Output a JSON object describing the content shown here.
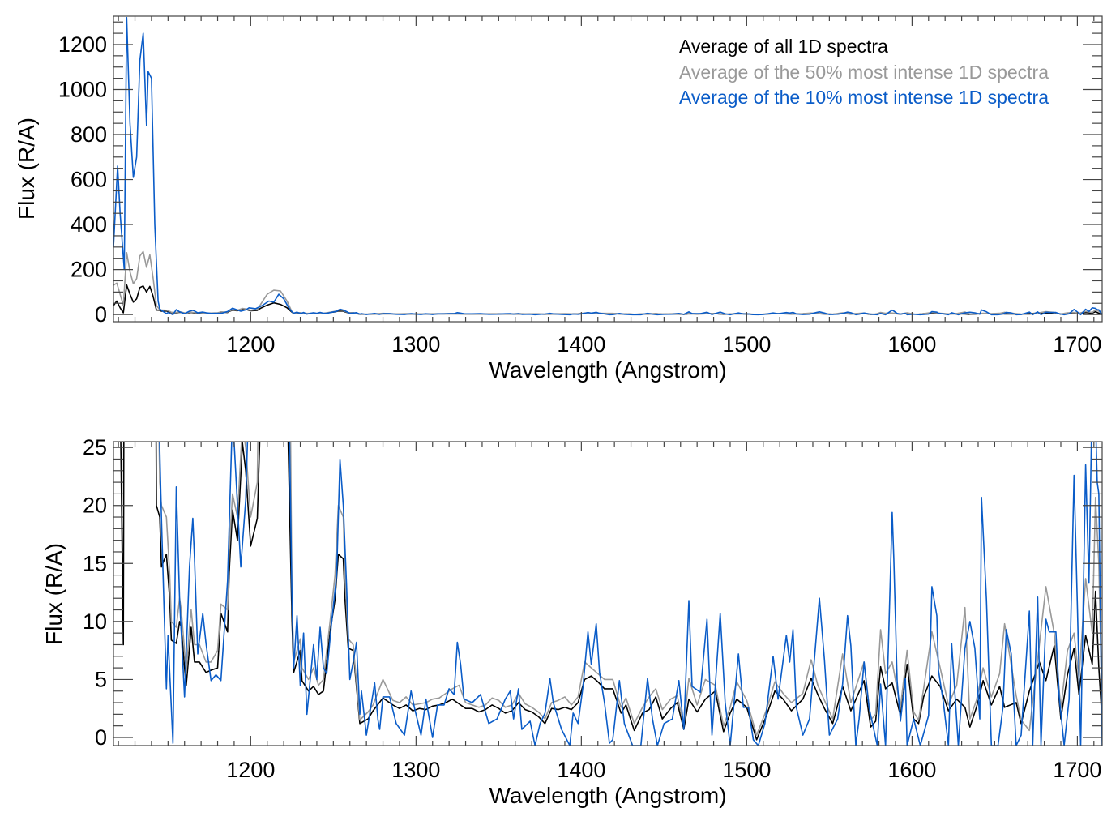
{
  "chart_data": {
    "type": "line",
    "series": [
      {
        "name": "Average of all 1D spectra",
        "color": "#000000",
        "x": [
          1117,
          1119,
          1121,
          1123,
          1125,
          1127,
          1129,
          1131,
          1133,
          1135,
          1137,
          1139,
          1141,
          1143,
          1145,
          1146,
          1149,
          1151,
          1152,
          1155,
          1157,
          1158,
          1160,
          1161,
          1163,
          1164,
          1166,
          1169,
          1173,
          1176,
          1180,
          1182,
          1186,
          1187,
          1189,
          1192,
          1195,
          1197,
          1200,
          1204,
          1206,
          1210,
          1214,
          1218,
          1222,
          1225,
          1226,
          1230,
          1231,
          1235,
          1238,
          1241,
          1244,
          1248,
          1251,
          1253,
          1256,
          1257,
          1259,
          1262,
          1266,
          1271,
          1274,
          1280,
          1286,
          1290,
          1294,
          1298,
          1302,
          1306,
          1310,
          1314,
          1318,
          1322,
          1326,
          1330,
          1334,
          1338,
          1342,
          1346,
          1350,
          1354,
          1358,
          1362,
          1366,
          1370,
          1374,
          1378,
          1382,
          1386,
          1390,
          1394,
          1398,
          1402,
          1406,
          1410,
          1414,
          1419,
          1424,
          1427,
          1432,
          1437,
          1441,
          1445,
          1449,
          1454,
          1458,
          1462,
          1465,
          1470,
          1475,
          1481,
          1486,
          1490,
          1494,
          1500,
          1506,
          1512,
          1517,
          1522,
          1527,
          1534,
          1539,
          1543,
          1547,
          1552,
          1558,
          1563,
          1571,
          1575,
          1578,
          1581,
          1584,
          1588,
          1593,
          1597,
          1601,
          1604,
          1607,
          1612,
          1617,
          1622,
          1627,
          1632,
          1635,
          1639,
          1643,
          1648,
          1653,
          1656,
          1663,
          1666,
          1671,
          1677,
          1681,
          1686,
          1690,
          1694,
          1698,
          1701,
          1705,
          1709,
          1711,
          1713,
          1715
        ],
        "y": [
          40,
          60,
          30,
          8,
          131,
          90,
          55,
          70,
          120,
          127,
          100,
          125,
          80,
          20,
          19,
          14.7,
          15.8,
          11.9,
          8.4,
          8.1,
          10,
          9.5,
          6,
          4.5,
          7.7,
          9.5,
          6.5,
          6.5,
          5.6,
          5.8,
          6,
          10.7,
          9.1,
          14.2,
          19.6,
          17,
          25.4,
          23,
          16.5,
          18.9,
          28,
          42,
          52,
          45,
          30,
          10,
          5.6,
          7.5,
          4.9,
          4,
          4.4,
          3.7,
          4,
          9.1,
          11.9,
          15.8,
          15.4,
          12,
          7.7,
          7.5,
          1.2,
          1.6,
          2.3,
          3.4,
          2.8,
          2.5,
          2.8,
          2.3,
          2.5,
          2.4,
          2.7,
          2.8,
          3.0,
          3.3,
          2.9,
          2.5,
          2.5,
          2.2,
          2.4,
          2.8,
          2.5,
          2.1,
          2.3,
          3.0,
          2.4,
          2.2,
          1.8,
          1.2,
          2.5,
          2.4,
          2.6,
          2.4,
          3.0,
          5.0,
          5.3,
          4.8,
          4.2,
          4.2,
          2.1,
          2.8,
          0.6,
          2.1,
          2.4,
          3.5,
          1.6,
          2.5,
          3.0,
          0.7,
          3.3,
          2.2,
          3.3,
          4.0,
          0.5,
          2.1,
          3.3,
          2.6,
          -0.2,
          1.9,
          4.0,
          3.3,
          2.3,
          3.3,
          5.1,
          3.7,
          2.5,
          1.2,
          4.4,
          2.3,
          4.9,
          0.9,
          1.4,
          6.1,
          4.2,
          4.7,
          1.9,
          6.3,
          1.6,
          1.2,
          3.5,
          5.3,
          4.4,
          2.3,
          3.3,
          2.6,
          0.9,
          2.6,
          4.9,
          2.8,
          4.4,
          2.6,
          3.0,
          1.2,
          4.0,
          6.5,
          4.9,
          7.9,
          1.6,
          5.4,
          7.7,
          3.7,
          8.8,
          6.3,
          12.6,
          6,
          1.4
        ]
      },
      {
        "name": "Average of the 50% most intense 1D spectra",
        "color": "#999999",
        "x": [
          1117,
          1119,
          1121,
          1123,
          1125,
          1127,
          1129,
          1131,
          1133,
          1135,
          1137,
          1139,
          1141,
          1143,
          1145,
          1146,
          1149,
          1151,
          1152,
          1155,
          1157,
          1158,
          1160,
          1161,
          1163,
          1164,
          1166,
          1169,
          1173,
          1176,
          1180,
          1182,
          1186,
          1187,
          1189,
          1192,
          1195,
          1197,
          1200,
          1204,
          1206,
          1210,
          1214,
          1218,
          1222,
          1225,
          1226,
          1230,
          1231,
          1235,
          1238,
          1241,
          1244,
          1248,
          1251,
          1253,
          1256,
          1257,
          1259,
          1262,
          1266,
          1271,
          1274,
          1280,
          1286,
          1290,
          1294,
          1298,
          1302,
          1306,
          1310,
          1314,
          1318,
          1322,
          1326,
          1330,
          1334,
          1338,
          1342,
          1346,
          1350,
          1354,
          1358,
          1362,
          1366,
          1370,
          1374,
          1378,
          1382,
          1386,
          1390,
          1394,
          1398,
          1402,
          1406,
          1410,
          1414,
          1419,
          1424,
          1427,
          1432,
          1437,
          1441,
          1445,
          1449,
          1454,
          1458,
          1462,
          1465,
          1470,
          1475,
          1481,
          1486,
          1490,
          1494,
          1500,
          1506,
          1512,
          1517,
          1522,
          1527,
          1534,
          1539,
          1543,
          1547,
          1552,
          1558,
          1563,
          1571,
          1575,
          1578,
          1581,
          1584,
          1588,
          1593,
          1597,
          1601,
          1604,
          1607,
          1612,
          1617,
          1622,
          1627,
          1632,
          1635,
          1639,
          1643,
          1648,
          1653,
          1656,
          1663,
          1666,
          1671,
          1677,
          1681,
          1686,
          1690,
          1694,
          1698,
          1701,
          1705,
          1709,
          1711,
          1713,
          1715
        ],
        "y": [
          130,
          140,
          90,
          40,
          275,
          190,
          137,
          160,
          260,
          280,
          210,
          265,
          160,
          40,
          22,
          20,
          19,
          14,
          10,
          9.5,
          12,
          11,
          7.5,
          5.5,
          9.5,
          11,
          8,
          8,
          6.5,
          6.5,
          7.5,
          11.5,
          11,
          16,
          21,
          19,
          27,
          25,
          19,
          22,
          45,
          90,
          108,
          105,
          60,
          12,
          6.5,
          8.5,
          6,
          5,
          6,
          4.5,
          5,
          10,
          14,
          20,
          19,
          14,
          8.5,
          8,
          1.5,
          2.2,
          2.8,
          5.0,
          3.2,
          3.0,
          3.5,
          2.8,
          2.9,
          3.0,
          3.3,
          3.4,
          3.8,
          4.2,
          4.5,
          3.0,
          2.8,
          2.6,
          2.8,
          3.4,
          3.2,
          2.6,
          2.8,
          3.8,
          2.9,
          2.6,
          2.2,
          1.6,
          3.0,
          3.2,
          3.5,
          2.8,
          3.5,
          6.5,
          6.0,
          5.5,
          5.0,
          5.0,
          2.6,
          3.4,
          1.2,
          2.6,
          3.5,
          4.2,
          2.4,
          3.3,
          3.6,
          1.0,
          5.1,
          2.8,
          5.0,
          4.5,
          1.0,
          2.6,
          4.8,
          3.2,
          0.2,
          2.4,
          4.8,
          3.8,
          3.0,
          3.8,
          6.7,
          4.5,
          3.2,
          1.6,
          7.2,
          3.0,
          6.5,
          1.5,
          2.0,
          9.3,
          5.5,
          6.5,
          2.6,
          7.5,
          2.2,
          1.5,
          4.2,
          9.1,
          6.0,
          2.8,
          4.5,
          11.2,
          1.6,
          3.2,
          6.0,
          3.5,
          5.5,
          9.8,
          3.6,
          1.5,
          0.6,
          8.0,
          13.0,
          9.0,
          2.5,
          7.5,
          9.0,
          5.0,
          13.7,
          9.0,
          20.7,
          15,
          2
        ]
      },
      {
        "name": "Average of the 10% most intense 1D spectra",
        "color": "#0a5cc8",
        "x": [
          1117,
          1119.5,
          1121,
          1123.5,
          1125,
          1127,
          1129,
          1131,
          1133,
          1135,
          1137,
          1138,
          1140,
          1142,
          1144,
          1145,
          1146,
          1149,
          1150,
          1153,
          1155,
          1157,
          1160,
          1163,
          1165,
          1166,
          1168,
          1171,
          1173,
          1176,
          1179,
          1182,
          1186,
          1189,
          1194,
          1197,
          1199,
          1203,
          1207,
          1211,
          1214,
          1217,
          1220,
          1223,
          1225,
          1226,
          1228,
          1230,
          1232,
          1234,
          1236,
          1238,
          1240,
          1242,
          1244,
          1246,
          1249,
          1252,
          1254,
          1256,
          1258,
          1260,
          1262,
          1264,
          1266,
          1267,
          1270,
          1275,
          1277,
          1278,
          1280,
          1284,
          1288,
          1293,
          1297,
          1299,
          1303,
          1306,
          1310,
          1313,
          1317,
          1320,
          1323,
          1325,
          1327,
          1329,
          1334,
          1339,
          1344,
          1349,
          1354,
          1357,
          1359,
          1362,
          1364,
          1369,
          1372,
          1375,
          1378,
          1381,
          1383,
          1388,
          1393,
          1395,
          1398,
          1401,
          1404,
          1406,
          1409,
          1411,
          1414,
          1417,
          1419,
          1423,
          1426,
          1431,
          1436,
          1440,
          1443,
          1446,
          1450,
          1455,
          1459,
          1462,
          1465,
          1467,
          1472,
          1476,
          1479,
          1484,
          1487,
          1490,
          1495,
          1498,
          1501,
          1504,
          1507,
          1511,
          1516,
          1519,
          1524,
          1526,
          1528,
          1530,
          1534,
          1538,
          1542,
          1544,
          1547,
          1550,
          1555,
          1558,
          1561,
          1563,
          1566,
          1568,
          1571,
          1574,
          1579,
          1581,
          1584,
          1588,
          1589,
          1591,
          1593,
          1596,
          1597,
          1601,
          1605,
          1610,
          1612,
          1615,
          1616,
          1619,
          1622,
          1624,
          1628,
          1632,
          1635,
          1638,
          1641,
          1642,
          1645,
          1648,
          1652,
          1655,
          1657,
          1660,
          1663,
          1666,
          1671,
          1673,
          1676,
          1678,
          1681,
          1683,
          1687,
          1689,
          1692,
          1695,
          1698,
          1700,
          1702,
          1705,
          1707,
          1709,
          1711,
          1712,
          1713,
          1715
        ],
        "y": [
          300,
          660,
          450,
          200,
          1320,
          850,
          610,
          700,
          1130,
          1250,
          840,
          1080,
          1050,
          400,
          60,
          25,
          18.9,
          4.2,
          8.8,
          -0.5,
          21.6,
          11.9,
          3.5,
          14.7,
          18.9,
          15.4,
          7.2,
          10.7,
          8.1,
          4.9,
          5.4,
          4.9,
          13.5,
          28,
          14.7,
          20.5,
          30,
          26,
          40,
          60,
          55,
          90,
          70,
          30,
          12,
          6,
          10.5,
          4.5,
          9,
          2,
          5,
          8,
          5,
          9.5,
          6,
          5.5,
          10,
          14,
          24,
          20,
          13,
          5,
          6.5,
          8.2,
          2,
          4,
          0.2,
          4.7,
          1.5,
          0.7,
          3.5,
          3.5,
          1.2,
          0.2,
          4.0,
          2.6,
          0.2,
          3.3,
          0,
          2.8,
          2.8,
          4.2,
          3.7,
          8.2,
          6.3,
          3.3,
          3.0,
          3.7,
          1.2,
          1.6,
          3.3,
          4.0,
          1.6,
          4.2,
          0.7,
          1.4,
          -0.7,
          1.2,
          2.1,
          5.1,
          3.0,
          0.7,
          -0.7,
          2.1,
          1.2,
          4.4,
          9.1,
          6.3,
          9.8,
          5.6,
          3.0,
          -0.5,
          -0.2,
          4.9,
          1.2,
          -0.7,
          -0.7,
          5.1,
          1.6,
          -0.7,
          1.2,
          1.6,
          4.9,
          0.7,
          11.8,
          4.4,
          3.9,
          10.2,
          0.2,
          10.7,
          3.0,
          -0.7,
          7.2,
          2.6,
          2.6,
          -0.2,
          -0.7,
          1.2,
          7.0,
          3.3,
          8.8,
          6.5,
          9.3,
          2.6,
          0.2,
          1.6,
          8.6,
          12.0,
          6.7,
          0.2,
          1.6,
          4.6,
          10.5,
          7.9,
          -0.7,
          1.6,
          6.5,
          2.6,
          -0.7,
          4.6,
          -0.7,
          19.4,
          15.4,
          4.9,
          1.4,
          5.1,
          -0.7,
          1.6,
          -0.7,
          1.9,
          13.0,
          10.5,
          5.8,
          3.0,
          -0.7,
          8.1,
          -0.7,
          7.7,
          10.0,
          7.7,
          1.6,
          20.7,
          11.9,
          -0.7,
          -0.7,
          2.6,
          9.3,
          7.2,
          -0.7,
          0.2,
          10.9,
          -0.7,
          12.1,
          -0.7,
          10.2,
          9.1,
          9.1,
          3.5,
          -0.7,
          3.3,
          22.6,
          11.4,
          -0.7,
          23.5,
          13.3,
          30,
          27.5,
          22,
          21,
          -0.7
        ]
      }
    ],
    "panels": [
      {
        "xlabel": "Wavelength (Angstrom)",
        "ylabel": "Flux (R/A)",
        "xlim": [
          1117,
          1715
        ],
        "ylim": [
          -32,
          1326
        ],
        "xticks": [
          1200,
          1300,
          1400,
          1500,
          1600,
          1700
        ],
        "xtick_labels": [
          "1200",
          "1300",
          "1400",
          "1500",
          "1600",
          "1700"
        ],
        "x_minor_step": 10,
        "yticks": [
          0,
          200,
          400,
          600,
          800,
          1000,
          1200
        ],
        "ytick_labels": [
          "0",
          "200",
          "400",
          "600",
          "800",
          "1000",
          "1200"
        ],
        "y_minor_step": 50,
        "legend": "top-right",
        "grid": false
      },
      {
        "xlabel": "Wavelength (Angstrom)",
        "ylabel": "Flux (R/A)",
        "xlim": [
          1117,
          1715
        ],
        "ylim": [
          -0.7,
          25.5
        ],
        "xticks": [
          1200,
          1300,
          1400,
          1500,
          1600,
          1700
        ],
        "xtick_labels": [
          "1200",
          "1300",
          "1400",
          "1500",
          "1600",
          "1700"
        ],
        "x_minor_step": 10,
        "yticks": [
          0,
          5,
          10,
          15,
          20,
          25
        ],
        "ytick_labels": [
          "0",
          "5",
          "10",
          "15",
          "20",
          "25"
        ],
        "y_minor_step": 1,
        "legend": "none",
        "grid": false
      }
    ]
  }
}
